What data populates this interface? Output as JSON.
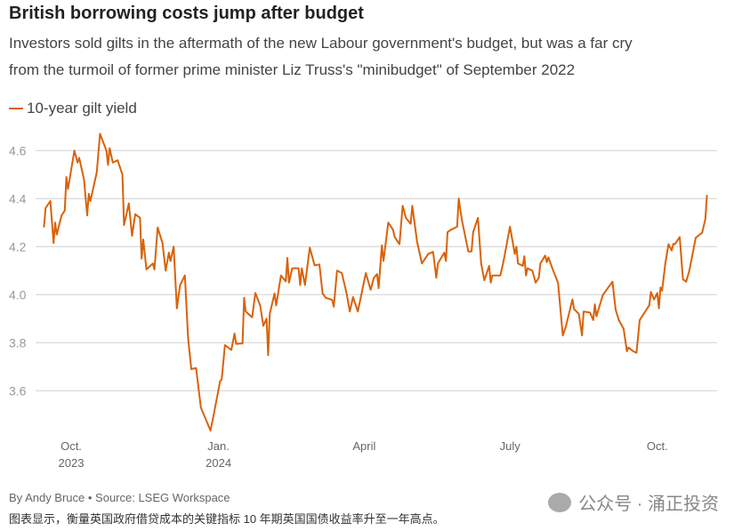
{
  "title": "British borrowing costs jump after budget",
  "subtitle_lines": [
    "Investors sold gilts in the aftermath of the new Labour government's budget, but was a far cry",
    "from the turmoil of former prime minister Liz Truss's \"minibudget\" of September 2022"
  ],
  "footer": {
    "credit": "By Andy Bruce • Source: LSEG Workspace",
    "caption": "图表显示，衡量英国政府借贷成本的关键指标 10 年期英国国债收益率升至一年高点。",
    "watermark": "公众号 · 涌正投资",
    "watermark_icon": "wechat-icon"
  },
  "chart_data": {
    "type": "line",
    "title": "British borrowing costs jump after budget",
    "series": [
      {
        "name": "10-year gilt yield",
        "color": "#d9620a",
        "points": [
          [
            "2023-09-14",
            4.28
          ],
          [
            "2023-09-15",
            4.36
          ],
          [
            "2023-09-18",
            4.39
          ],
          [
            "2023-09-20",
            4.215
          ],
          [
            "2023-09-21",
            4.3
          ],
          [
            "2023-09-22",
            4.25
          ],
          [
            "2023-09-25",
            4.33
          ],
          [
            "2023-09-27",
            4.35
          ],
          [
            "2023-09-28",
            4.49
          ],
          [
            "2023-09-29",
            4.44
          ],
          [
            "2023-10-03",
            4.6
          ],
          [
            "2023-10-05",
            4.55
          ],
          [
            "2023-10-06",
            4.57
          ],
          [
            "2023-10-09",
            4.48
          ],
          [
            "2023-10-11",
            4.33
          ],
          [
            "2023-10-12",
            4.42
          ],
          [
            "2023-10-13",
            4.39
          ],
          [
            "2023-10-17",
            4.51
          ],
          [
            "2023-10-19",
            4.67
          ],
          [
            "2023-10-23",
            4.6
          ],
          [
            "2023-10-24",
            4.54
          ],
          [
            "2023-10-25",
            4.61
          ],
          [
            "2023-10-27",
            4.55
          ],
          [
            "2023-10-30",
            4.56
          ],
          [
            "2023-11-02",
            4.5
          ],
          [
            "2023-11-03",
            4.29
          ],
          [
            "2023-11-06",
            4.38
          ],
          [
            "2023-11-08",
            4.245
          ],
          [
            "2023-11-10",
            4.335
          ],
          [
            "2023-11-13",
            4.32
          ],
          [
            "2023-11-14",
            4.15
          ],
          [
            "2023-11-15",
            4.23
          ],
          [
            "2023-11-17",
            4.105
          ],
          [
            "2023-11-21",
            4.13
          ],
          [
            "2023-11-22",
            4.105
          ],
          [
            "2023-11-24",
            4.28
          ],
          [
            "2023-11-27",
            4.215
          ],
          [
            "2023-11-29",
            4.1
          ],
          [
            "2023-12-01",
            4.175
          ],
          [
            "2023-12-02",
            4.14
          ],
          [
            "2023-12-04",
            4.2
          ],
          [
            "2023-12-06",
            3.943
          ],
          [
            "2023-12-08",
            4.04
          ],
          [
            "2023-12-11",
            4.08
          ],
          [
            "2023-12-13",
            3.82
          ],
          [
            "2023-12-15",
            3.69
          ],
          [
            "2023-12-18",
            3.694
          ],
          [
            "2023-12-21",
            3.53
          ],
          [
            "2023-12-27",
            3.434
          ],
          [
            "2023-12-29",
            3.5
          ],
          [
            "2024-01-02",
            3.64
          ],
          [
            "2024-01-03",
            3.647
          ],
          [
            "2024-01-05",
            3.79
          ],
          [
            "2024-01-09",
            3.77
          ],
          [
            "2024-01-11",
            3.838
          ],
          [
            "2024-01-12",
            3.795
          ],
          [
            "2024-01-16",
            3.797
          ],
          [
            "2024-01-17",
            3.987
          ],
          [
            "2024-01-18",
            3.93
          ],
          [
            "2024-01-22",
            3.906
          ],
          [
            "2024-01-24",
            4.007
          ],
          [
            "2024-01-27",
            3.955
          ],
          [
            "2024-01-29",
            3.87
          ],
          [
            "2024-01-31",
            3.9
          ],
          [
            "2024-02-01",
            3.748
          ],
          [
            "2024-02-02",
            3.92
          ],
          [
            "2024-02-05",
            4.005
          ],
          [
            "2024-02-06",
            3.955
          ],
          [
            "2024-02-09",
            4.08
          ],
          [
            "2024-02-12",
            4.055
          ],
          [
            "2024-02-13",
            4.153
          ],
          [
            "2024-02-14",
            4.05
          ],
          [
            "2024-02-16",
            4.11
          ],
          [
            "2024-02-20",
            4.11
          ],
          [
            "2024-02-21",
            4.04
          ],
          [
            "2024-02-22",
            4.11
          ],
          [
            "2024-02-24",
            4.04
          ],
          [
            "2024-02-27",
            4.196
          ],
          [
            "2024-03-01",
            4.122
          ],
          [
            "2024-03-04",
            4.126
          ],
          [
            "2024-03-06",
            4.005
          ],
          [
            "2024-03-08",
            3.987
          ],
          [
            "2024-03-12",
            3.978
          ],
          [
            "2024-03-13",
            3.95
          ],
          [
            "2024-03-15",
            4.1
          ],
          [
            "2024-03-18",
            4.09
          ],
          [
            "2024-03-21",
            4.005
          ],
          [
            "2024-03-23",
            3.93
          ],
          [
            "2024-03-25",
            3.99
          ],
          [
            "2024-03-28",
            3.93
          ],
          [
            "2024-04-02",
            4.09
          ],
          [
            "2024-04-05",
            4.02
          ],
          [
            "2024-04-07",
            4.07
          ],
          [
            "2024-04-09",
            4.086
          ],
          [
            "2024-04-10",
            4.027
          ],
          [
            "2024-04-12",
            4.205
          ],
          [
            "2024-04-13",
            4.14
          ],
          [
            "2024-04-16",
            4.3
          ],
          [
            "2024-04-19",
            4.27
          ],
          [
            "2024-04-20",
            4.24
          ],
          [
            "2024-04-23",
            4.21
          ],
          [
            "2024-04-25",
            4.37
          ],
          [
            "2024-04-27",
            4.32
          ],
          [
            "2024-04-30",
            4.295
          ],
          [
            "2024-05-01",
            4.37
          ],
          [
            "2024-05-04",
            4.22
          ],
          [
            "2024-05-07",
            4.13
          ],
          [
            "2024-05-11",
            4.17
          ],
          [
            "2024-05-14",
            4.178
          ],
          [
            "2024-05-16",
            4.07
          ],
          [
            "2024-05-17",
            4.13
          ],
          [
            "2024-05-21",
            4.175
          ],
          [
            "2024-05-22",
            4.14
          ],
          [
            "2024-05-23",
            4.26
          ],
          [
            "2024-05-25",
            4.27
          ],
          [
            "2024-05-29",
            4.283
          ],
          [
            "2024-05-30",
            4.4
          ],
          [
            "2024-06-01",
            4.31
          ],
          [
            "2024-06-05",
            4.18
          ],
          [
            "2024-06-07",
            4.18
          ],
          [
            "2024-06-08",
            4.26
          ],
          [
            "2024-06-11",
            4.32
          ],
          [
            "2024-06-13",
            4.13
          ],
          [
            "2024-06-15",
            4.06
          ],
          [
            "2024-06-18",
            4.12
          ],
          [
            "2024-06-19",
            4.05
          ],
          [
            "2024-06-20",
            4.08
          ],
          [
            "2024-06-25",
            4.08
          ],
          [
            "2024-06-27",
            4.14
          ],
          [
            "2024-07-01",
            4.283
          ],
          [
            "2024-07-04",
            4.17
          ],
          [
            "2024-07-05",
            4.2
          ],
          [
            "2024-07-06",
            4.13
          ],
          [
            "2024-07-09",
            4.12
          ],
          [
            "2024-07-10",
            4.16
          ],
          [
            "2024-07-11",
            4.08
          ],
          [
            "2024-07-12",
            4.11
          ],
          [
            "2024-07-15",
            4.1
          ],
          [
            "2024-07-17",
            4.05
          ],
          [
            "2024-07-19",
            4.07
          ],
          [
            "2024-07-20",
            4.13
          ],
          [
            "2024-07-23",
            4.163
          ],
          [
            "2024-07-24",
            4.135
          ],
          [
            "2024-07-25",
            4.155
          ],
          [
            "2024-07-28",
            4.1
          ],
          [
            "2024-07-31",
            4.05
          ],
          [
            "2024-08-03",
            3.83
          ],
          [
            "2024-08-05",
            3.87
          ],
          [
            "2024-08-09",
            3.98
          ],
          [
            "2024-08-10",
            3.94
          ],
          [
            "2024-08-13",
            3.92
          ],
          [
            "2024-08-15",
            3.83
          ],
          [
            "2024-08-16",
            3.93
          ],
          [
            "2024-08-20",
            3.925
          ],
          [
            "2024-08-22",
            3.894
          ],
          [
            "2024-08-23",
            3.96
          ],
          [
            "2024-08-24",
            3.91
          ],
          [
            "2024-08-28",
            3.999
          ],
          [
            "2024-08-30",
            4.017
          ],
          [
            "2024-09-03",
            4.054
          ],
          [
            "2024-09-05",
            3.937
          ],
          [
            "2024-09-07",
            3.894
          ],
          [
            "2024-09-10",
            3.857
          ],
          [
            "2024-09-12",
            3.764
          ],
          [
            "2024-09-13",
            3.78
          ],
          [
            "2024-09-16",
            3.764
          ],
          [
            "2024-09-18",
            3.758
          ],
          [
            "2024-09-20",
            3.894
          ],
          [
            "2024-09-23",
            3.925
          ],
          [
            "2024-09-26",
            3.956
          ],
          [
            "2024-09-27",
            4.011
          ],
          [
            "2024-09-29",
            3.98
          ],
          [
            "2024-10-01",
            4.007
          ],
          [
            "2024-10-02",
            3.943
          ],
          [
            "2024-10-03",
            4.03
          ],
          [
            "2024-10-04",
            4.017
          ],
          [
            "2024-10-06",
            4.13
          ],
          [
            "2024-10-08",
            4.21
          ],
          [
            "2024-10-10",
            4.184
          ],
          [
            "2024-10-11",
            4.212
          ],
          [
            "2024-10-12",
            4.21
          ],
          [
            "2024-10-15",
            4.24
          ],
          [
            "2024-10-17",
            4.064
          ],
          [
            "2024-10-19",
            4.054
          ],
          [
            "2024-10-21",
            4.1
          ],
          [
            "2024-10-25",
            4.237
          ],
          [
            "2024-10-29",
            4.258
          ],
          [
            "2024-10-31",
            4.314
          ],
          [
            "2024-11-01",
            4.415
          ]
        ]
      }
    ],
    "x_ticks": [
      {
        "date": "2023-10-01",
        "label": "Oct.",
        "sublabel": "2023"
      },
      {
        "date": "2024-01-01",
        "label": "Jan.",
        "sublabel": "2024"
      },
      {
        "date": "2024-04-01",
        "label": "April",
        "sublabel": ""
      },
      {
        "date": "2024-07-01",
        "label": "July",
        "sublabel": ""
      },
      {
        "date": "2024-10-01",
        "label": "Oct.",
        "sublabel": ""
      }
    ],
    "y_ticks": [
      "3.6",
      "3.8",
      "4.0",
      "4.2",
      "4.4",
      "4.6"
    ],
    "ylim": [
      3.4,
      4.7
    ],
    "xlim": [
      "2023-09-14",
      "2024-11-01"
    ],
    "grid": "horizontal",
    "legend": "top-left",
    "xlabel": "",
    "ylabel": ""
  }
}
